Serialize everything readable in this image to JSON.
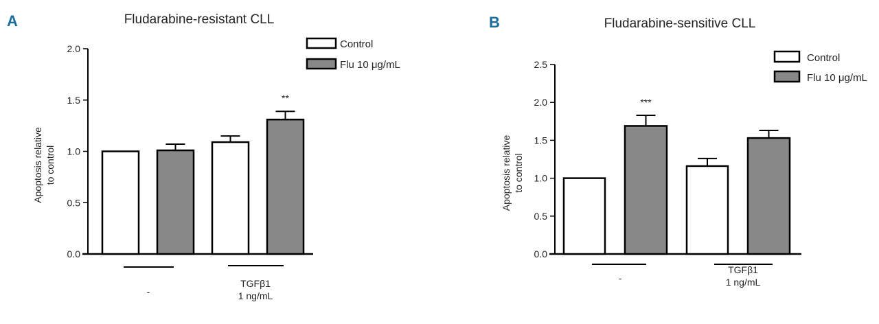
{
  "chart_data": [
    {
      "panel": "A",
      "type": "bar",
      "title": "Fludarabine-resistant CLL",
      "ylabel": [
        "Apoptosis relative",
        "to control"
      ],
      "ylim": [
        0,
        2.0
      ],
      "yticks": [
        "0.0",
        "0.5",
        "1.0",
        "1.5",
        "2.0"
      ],
      "categories": [
        [
          "-"
        ],
        [
          "TGFβ1",
          "1 ng/mL"
        ]
      ],
      "legend": {
        "position": "top-right",
        "entries": [
          "Control",
          "Flu 10 μg/mL"
        ]
      },
      "series": [
        {
          "name": "Control",
          "values": [
            1.0,
            1.09
          ],
          "errors": [
            0,
            0.06
          ],
          "color": "#ffffff"
        },
        {
          "name": "Flu 10 μg/mL",
          "values": [
            1.01,
            1.31
          ],
          "errors": [
            0.06,
            0.08
          ],
          "color": "#888888"
        }
      ],
      "annotations": [
        {
          "series": 1,
          "category": 1,
          "text": "**"
        }
      ]
    },
    {
      "panel": "B",
      "type": "bar",
      "title": "Fludarabine-sensitive CLL",
      "ylabel": [
        "Apoptosis relative",
        "to control"
      ],
      "ylim": [
        0,
        2.5
      ],
      "yticks": [
        "0.0",
        "0.5",
        "1.0",
        "1.5",
        "2.0",
        "2.5"
      ],
      "categories": [
        [
          "-"
        ],
        [
          "TGFβ1",
          "1 ng/mL"
        ]
      ],
      "legend": {
        "position": "top-right",
        "entries": [
          "Control",
          "Flu 10 μg/mL"
        ]
      },
      "series": [
        {
          "name": "Control",
          "values": [
            1.0,
            1.16
          ],
          "errors": [
            0,
            0.1
          ],
          "color": "#ffffff"
        },
        {
          "name": "Flu 10 μg/mL",
          "values": [
            1.69,
            1.53
          ],
          "errors": [
            0.14,
            0.1
          ],
          "color": "#888888"
        }
      ],
      "annotations": [
        {
          "series": 1,
          "category": 0,
          "text": "***"
        }
      ]
    }
  ]
}
